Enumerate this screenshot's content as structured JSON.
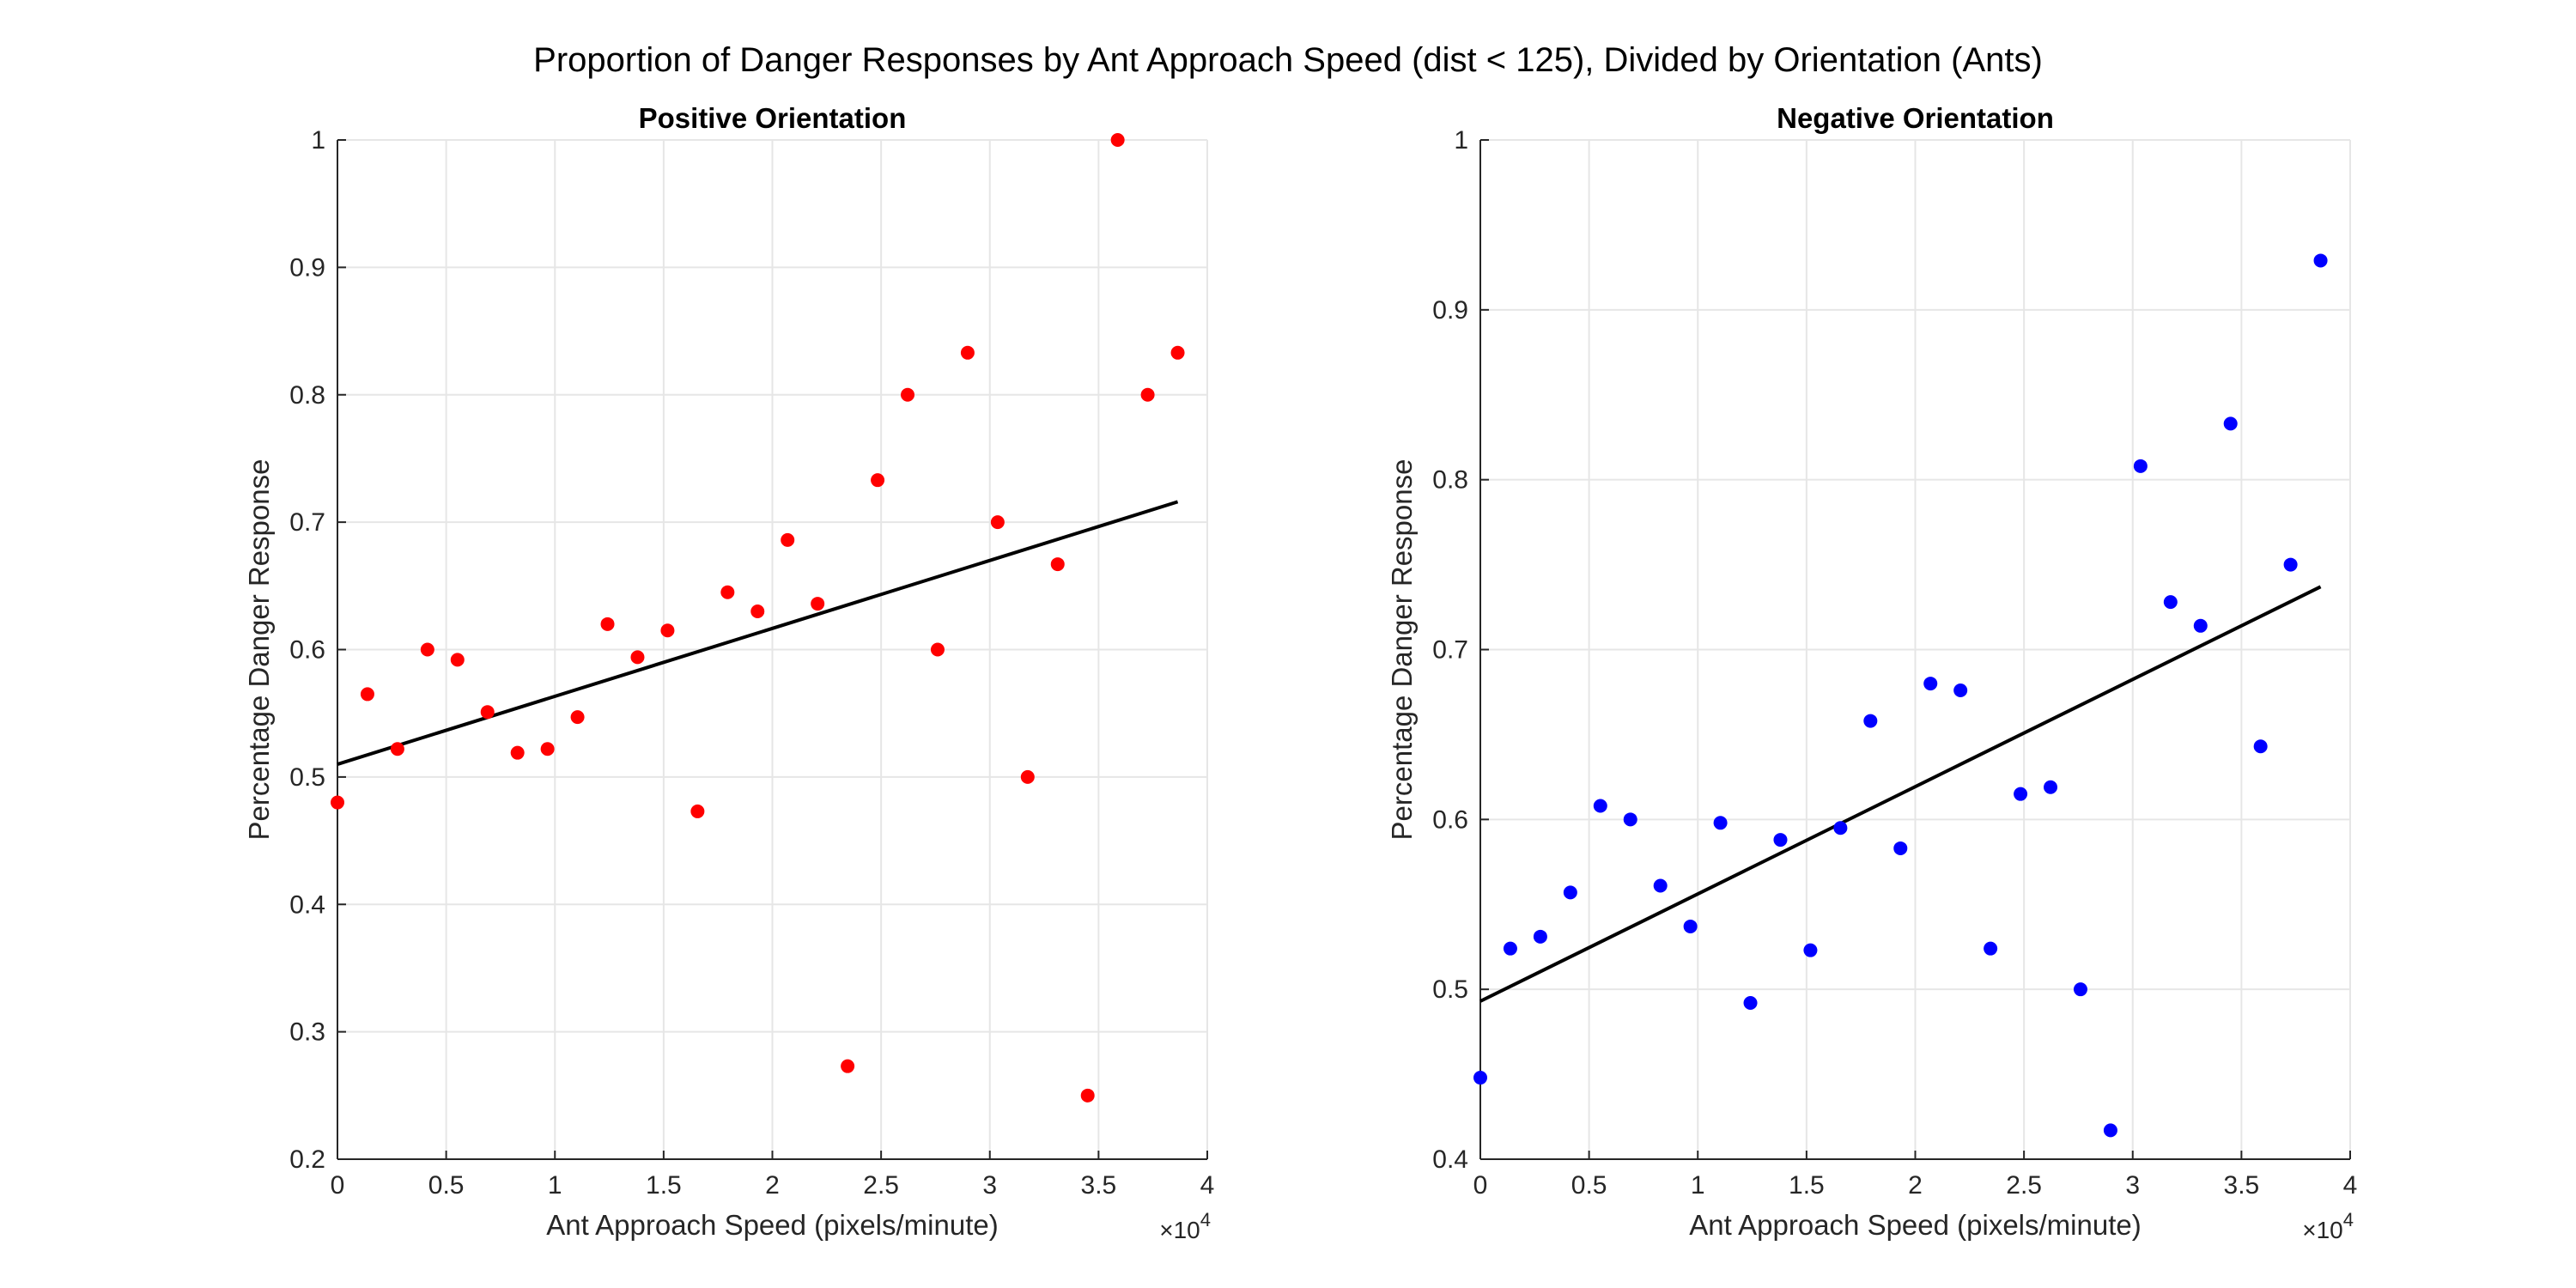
{
  "figure": {
    "title": "Proportion of Danger Responses by Ant Approach Speed (dist < 125), Divided by Orientation (Ants)"
  },
  "chart_data": [
    {
      "type": "scatter",
      "title": "Positive Orientation",
      "xlabel": "Ant Approach Speed (pixels/minute)",
      "ylabel": "Percentage Danger Response",
      "x_exponent_label": "×10^4",
      "x_exponent_base": "×10",
      "x_exponent_power": "4",
      "xlim": [
        0,
        4
      ],
      "ylim": [
        0.2,
        1
      ],
      "xticks": [
        0,
        0.5,
        1,
        1.5,
        2,
        2.5,
        3,
        3.5,
        4
      ],
      "xtick_labels": [
        "0",
        "0.5",
        "1",
        "1.5",
        "2",
        "2.5",
        "3",
        "3.5",
        "4"
      ],
      "yticks": [
        0.2,
        0.3,
        0.4,
        0.5,
        0.6,
        0.7,
        0.8,
        0.9,
        1
      ],
      "ytick_labels": [
        "0.2",
        "0.3",
        "0.4",
        "0.5",
        "0.6",
        "0.7",
        "0.8",
        "0.9",
        "1"
      ],
      "grid": true,
      "marker_color": "#ff0000",
      "series": [
        {
          "x": [
            0.0,
            0.138,
            0.276,
            0.414,
            0.552,
            0.69,
            0.828,
            0.966,
            1.104,
            1.242,
            1.38,
            1.518,
            1.656,
            1.794,
            1.932,
            2.07,
            2.208,
            2.346,
            2.484,
            2.622,
            2.76,
            2.898,
            3.036,
            3.174,
            3.312,
            3.45,
            3.588,
            3.726,
            3.864
          ],
          "y": [
            0.48,
            0.565,
            0.522,
            0.6,
            0.592,
            0.551,
            0.519,
            0.522,
            0.547,
            0.62,
            0.594,
            0.615,
            0.473,
            0.645,
            0.63,
            0.686,
            0.636,
            0.273,
            0.733,
            0.8,
            0.6,
            0.833,
            0.7,
            0.5,
            0.667,
            0.25,
            1.0,
            0.8,
            0.833
          ]
        }
      ],
      "fit_line": {
        "x": [
          0,
          3.864
        ],
        "y": [
          0.51,
          0.716
        ]
      }
    },
    {
      "type": "scatter",
      "title": "Negative Orientation",
      "xlabel": "Ant Approach Speed (pixels/minute)",
      "ylabel": "Percentage Danger Response",
      "x_exponent_label": "×10^4",
      "x_exponent_base": "×10",
      "x_exponent_power": "4",
      "xlim": [
        0,
        4
      ],
      "ylim": [
        0.4,
        1
      ],
      "xticks": [
        0,
        0.5,
        1,
        1.5,
        2,
        2.5,
        3,
        3.5,
        4
      ],
      "xtick_labels": [
        "0",
        "0.5",
        "1",
        "1.5",
        "2",
        "2.5",
        "3",
        "3.5",
        "4"
      ],
      "yticks": [
        0.4,
        0.5,
        0.6,
        0.7,
        0.8,
        0.9,
        1
      ],
      "ytick_labels": [
        "0.4",
        "0.5",
        "0.6",
        "0.7",
        "0.8",
        "0.9",
        "1"
      ],
      "grid": true,
      "marker_color": "#0000ff",
      "series": [
        {
          "x": [
            0.0,
            0.138,
            0.276,
            0.414,
            0.552,
            0.69,
            0.828,
            0.966,
            1.104,
            1.242,
            1.38,
            1.518,
            1.656,
            1.794,
            1.932,
            2.07,
            2.208,
            2.346,
            2.484,
            2.622,
            2.76,
            2.898,
            3.036,
            3.174,
            3.312,
            3.45,
            3.588,
            3.726,
            3.864
          ],
          "y": [
            0.448,
            0.524,
            0.531,
            0.557,
            0.608,
            0.6,
            0.561,
            0.537,
            0.598,
            0.492,
            0.588,
            0.523,
            0.595,
            0.658,
            0.583,
            0.68,
            0.676,
            0.524,
            0.615,
            0.619,
            0.5,
            0.417,
            0.808,
            0.728,
            0.714,
            0.833,
            0.643,
            0.75,
            0.929
          ]
        }
      ],
      "fit_line": {
        "x": [
          0,
          3.864
        ],
        "y": [
          0.493,
          0.737
        ]
      }
    }
  ]
}
